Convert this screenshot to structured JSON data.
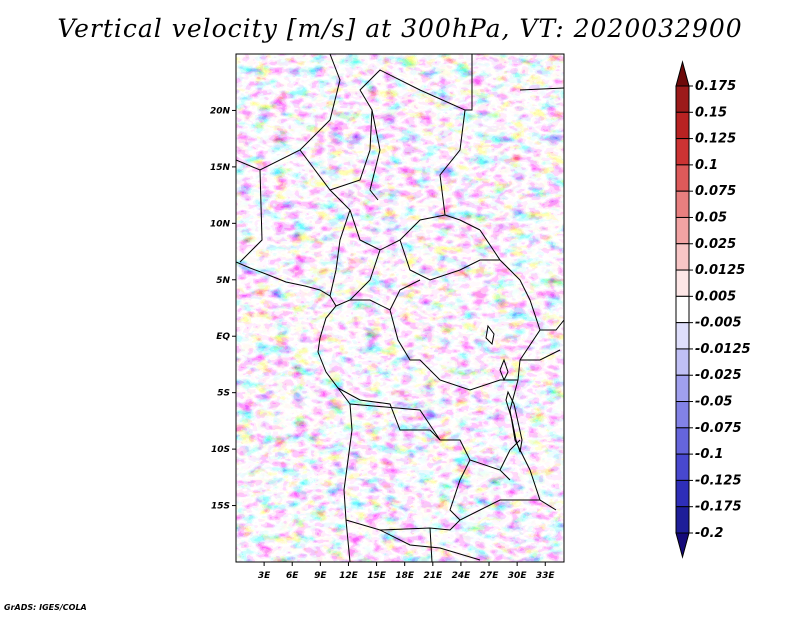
{
  "chart_data": {
    "type": "heatmap",
    "title": "Vertical velocity [m/s] at 300hPa, VT: 2020032900",
    "credit": "GrADS: IGES/COLA",
    "x_ticks": [
      "3E",
      "6E",
      "9E",
      "12E",
      "15E",
      "18E",
      "21E",
      "24E",
      "27E",
      "30E",
      "33E"
    ],
    "x_tick_values": [
      3,
      6,
      9,
      12,
      15,
      18,
      21,
      24,
      27,
      30,
      33
    ],
    "y_ticks": [
      "20N",
      "15N",
      "10N",
      "5N",
      "EQ",
      "5S",
      "10S",
      "15S"
    ],
    "y_tick_values": [
      20,
      15,
      10,
      5,
      0,
      -5,
      -10,
      -15
    ],
    "xlim": [
      0,
      35
    ],
    "ylim": [
      -20,
      25
    ],
    "colorbar": {
      "placement": "right",
      "levels": [
        "0.175",
        "0.15",
        "0.125",
        "0.1",
        "0.075",
        "0.05",
        "0.025",
        "0.0125",
        "0.005",
        "-0.005",
        "-0.0125",
        "-0.025",
        "-0.05",
        "-0.075",
        "-0.1",
        "-0.125",
        "-0.175",
        "-0.2"
      ],
      "colors": [
        "#6d0a0a",
        "#9c1a1a",
        "#b82222",
        "#cc3333",
        "#dd5a5a",
        "#e87f7f",
        "#f2a3a3",
        "#f8c6c6",
        "#fde6e6",
        "#ffffff",
        "#dedefb",
        "#c0c0f5",
        "#a0a0ee",
        "#8282e6",
        "#6565dc",
        "#4848cf",
        "#2e2eb8",
        "#1e1e99",
        "#150a7a"
      ]
    }
  }
}
